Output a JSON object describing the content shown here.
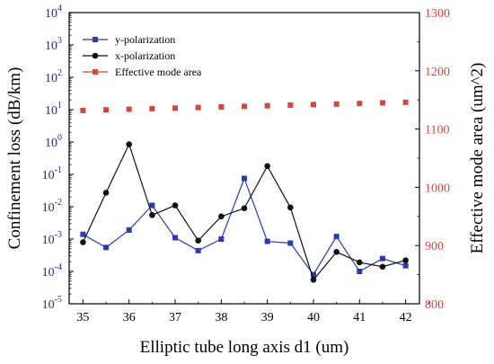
{
  "chart_data": {
    "type": "line",
    "xlabel": "Elliptic tube long axis d1 (um)",
    "ylabel_left": "Confinement loss (dB/km)",
    "ylabel_right": "Effective mode area (um^2)",
    "x_ticks": [
      "35",
      "36",
      "37",
      "38",
      "39",
      "40",
      "41",
      "42"
    ],
    "xlim": [
      34.7,
      42.3
    ],
    "left_axis": {
      "scale": "log",
      "ylim_exponent": [
        -5,
        4
      ],
      "tick_base": "10",
      "tick_exponents": [
        "-5",
        "-4",
        "-3",
        "-2",
        "-1",
        "0",
        "1",
        "2",
        "3",
        "4"
      ],
      "color": "#1f2a8c"
    },
    "right_axis": {
      "scale": "linear",
      "ylim": [
        800,
        1300
      ],
      "ticks": [
        "800",
        "900",
        "1000",
        "1100",
        "1200",
        "1300"
      ],
      "color": "#d0473f"
    },
    "legend_position": "top-left",
    "grid": false,
    "x": [
      35,
      35.5,
      36,
      36.5,
      37,
      37.5,
      38,
      38.5,
      39,
      39.5,
      40,
      40.5,
      41,
      41.5,
      42
    ],
    "series": [
      {
        "name": "y-polarization",
        "axis": "left",
        "marker": "square",
        "color": "#2a3bb0",
        "values": [
          0.0014,
          0.00055,
          0.0019,
          0.011,
          0.0011,
          0.00044,
          0.001,
          0.075,
          0.00085,
          0.00075,
          8e-05,
          0.0012,
          0.0001,
          0.00025,
          0.00015
        ]
      },
      {
        "name": "x-polarization",
        "axis": "left",
        "marker": "circle",
        "color": "#111111",
        "values": [
          0.0008,
          0.027,
          0.85,
          0.0055,
          0.011,
          0.0009,
          0.005,
          0.009,
          0.18,
          0.0095,
          5.5e-05,
          0.0004,
          0.00019,
          0.00014,
          0.00022
        ]
      },
      {
        "name": "Effective mode area",
        "axis": "right",
        "marker": "square",
        "color": "#d0473f",
        "values": [
          1132,
          1133,
          1134,
          1135,
          1136,
          1137,
          1138,
          1139,
          1140,
          1141,
          1142,
          1143,
          1144,
          1145,
          1146
        ]
      }
    ]
  }
}
